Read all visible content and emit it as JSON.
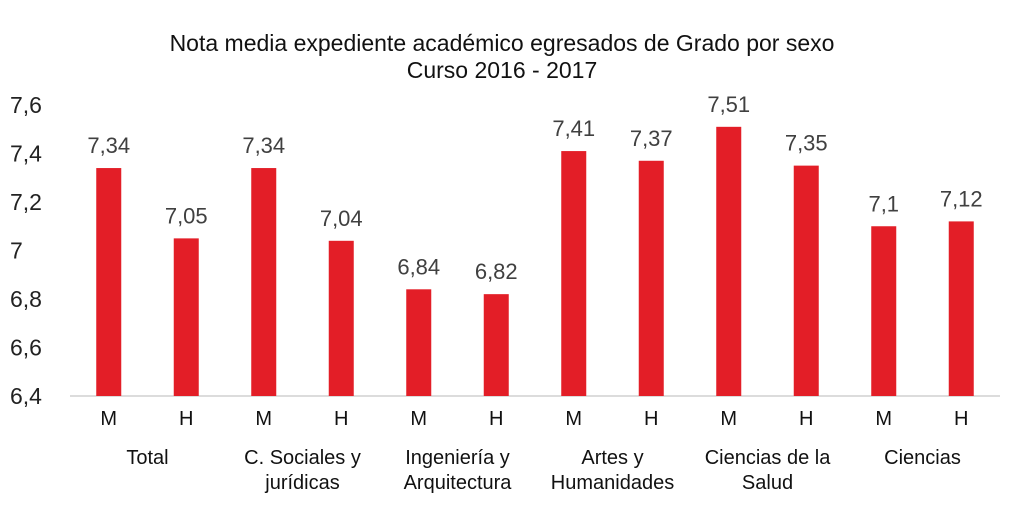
{
  "chart_data": {
    "type": "bar",
    "title": "Nota media expediente académico egresados de Grado por sexo",
    "subtitle": "Curso 2016 - 2017",
    "xlabel": "",
    "ylabel": "",
    "ylim": [
      6.4,
      7.6
    ],
    "yticks": [
      "6,4",
      "6,6",
      "6,8",
      "7",
      "7,2",
      "7,4",
      "7,6"
    ],
    "grid": false,
    "legend": "none",
    "bar_color": "#e31e27",
    "groups": [
      {
        "label_lines": [
          "Total"
        ],
        "bars": [
          {
            "category": "M",
            "value": 7.34,
            "label": "7,34"
          },
          {
            "category": "H",
            "value": 7.05,
            "label": "7,05"
          }
        ]
      },
      {
        "label_lines": [
          "C. Sociales y",
          "jurídicas"
        ],
        "bars": [
          {
            "category": "M",
            "value": 7.34,
            "label": "7,34"
          },
          {
            "category": "H",
            "value": 7.04,
            "label": "7,04"
          }
        ]
      },
      {
        "label_lines": [
          "Ingeniería y",
          "Arquitectura"
        ],
        "bars": [
          {
            "category": "M",
            "value": 6.84,
            "label": "6,84"
          },
          {
            "category": "H",
            "value": 6.82,
            "label": "6,82"
          }
        ]
      },
      {
        "label_lines": [
          "Artes y",
          "Humanidades"
        ],
        "bars": [
          {
            "category": "M",
            "value": 7.41,
            "label": "7,41"
          },
          {
            "category": "H",
            "value": 7.37,
            "label": "7,37"
          }
        ]
      },
      {
        "label_lines": [
          "Ciencias de la",
          "Salud"
        ],
        "bars": [
          {
            "category": "M",
            "value": 7.51,
            "label": "7,51"
          },
          {
            "category": "H",
            "value": 7.35,
            "label": "7,35"
          }
        ]
      },
      {
        "label_lines": [
          "Ciencias"
        ],
        "bars": [
          {
            "category": "M",
            "value": 7.1,
            "label": "7,1"
          },
          {
            "category": "H",
            "value": 7.12,
            "label": "7,12"
          }
        ]
      }
    ]
  }
}
